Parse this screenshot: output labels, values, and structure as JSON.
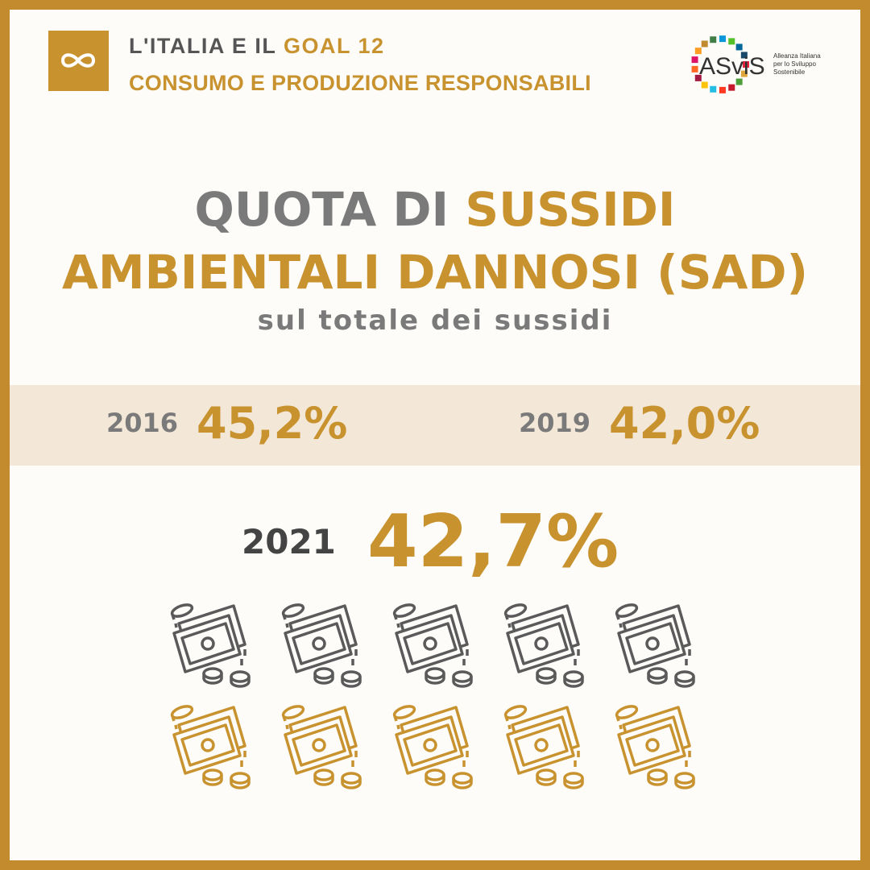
{
  "header": {
    "title_prefix": "L'ITALIA E IL",
    "title_goal": "GOAL 12",
    "subtitle": "CONSUMO E PRODUZIONE RESPONSABILI"
  },
  "logo": {
    "name": "ASviS",
    "tagline": [
      "Alleanza Italiana",
      "per lo Sviluppo",
      "Sostenibile"
    ]
  },
  "headline": {
    "part1": "QUOTA DI",
    "part2": "SUSSIDI",
    "line2": "AMBIENTALI DANNOSI (SAD)",
    "subtitle": "sul totale dei sussidi"
  },
  "stats": [
    {
      "year": "2016",
      "value": "45,2%"
    },
    {
      "year": "2019",
      "value": "42,0%"
    }
  ],
  "highlight": {
    "year": "2021",
    "value": "42,7%"
  }
}
